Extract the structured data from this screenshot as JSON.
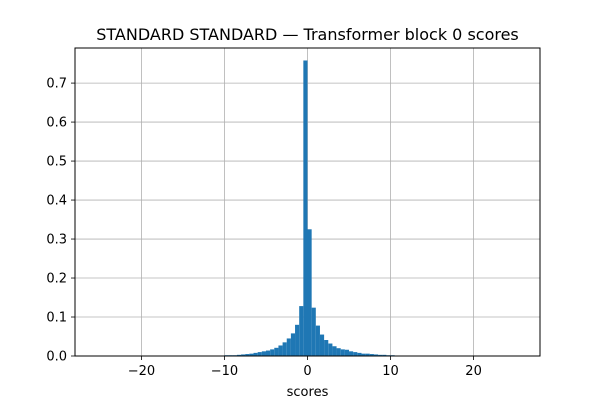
{
  "chart_data": {
    "type": "bar",
    "title": "STANDARD STANDARD — Transformer block 0 scores",
    "xlabel": "scores",
    "ylabel": "",
    "xlim": [
      -28,
      28
    ],
    "ylim": [
      0,
      0.79
    ],
    "xticks": [
      -20,
      -10,
      0,
      10,
      20
    ],
    "xtick_labels": [
      "−20",
      "−10",
      "0",
      "10",
      "20"
    ],
    "yticks": [
      0.0,
      0.1,
      0.2,
      0.3,
      0.4,
      0.5,
      0.6,
      0.7
    ],
    "ytick_labels": [
      "0.0",
      "0.1",
      "0.2",
      "0.3",
      "0.4",
      "0.5",
      "0.6",
      "0.7"
    ],
    "grid": true,
    "bar_color": "#1f77b4",
    "bin_width": 0.5,
    "bin_starts": [
      -12.0,
      -11.5,
      -11.0,
      -10.5,
      -10.0,
      -9.5,
      -9.0,
      -8.5,
      -8.0,
      -7.5,
      -7.0,
      -6.5,
      -6.0,
      -5.5,
      -5.0,
      -4.5,
      -4.0,
      -3.5,
      -3.0,
      -2.5,
      -2.0,
      -1.5,
      -1.0,
      -0.5,
      0.0,
      0.5,
      1.0,
      1.5,
      2.0,
      2.5,
      3.0,
      3.5,
      4.0,
      4.5,
      5.0,
      5.5,
      6.0,
      6.5,
      7.0,
      7.5,
      8.0,
      8.5,
      9.0,
      9.5,
      10.0,
      10.5,
      11.0,
      11.5
    ],
    "values": [
      0.001,
      0.001,
      0.001,
      0.001,
      0.002,
      0.002,
      0.002,
      0.003,
      0.004,
      0.005,
      0.006,
      0.008,
      0.01,
      0.012,
      0.014,
      0.017,
      0.021,
      0.027,
      0.035,
      0.045,
      0.058,
      0.08,
      0.128,
      0.758,
      0.325,
      0.124,
      0.078,
      0.055,
      0.041,
      0.032,
      0.025,
      0.02,
      0.017,
      0.016,
      0.012,
      0.01,
      0.008,
      0.006,
      0.006,
      0.005,
      0.004,
      0.003,
      0.003,
      0.002,
      0.002,
      0.001,
      0.001,
      0.001
    ]
  }
}
